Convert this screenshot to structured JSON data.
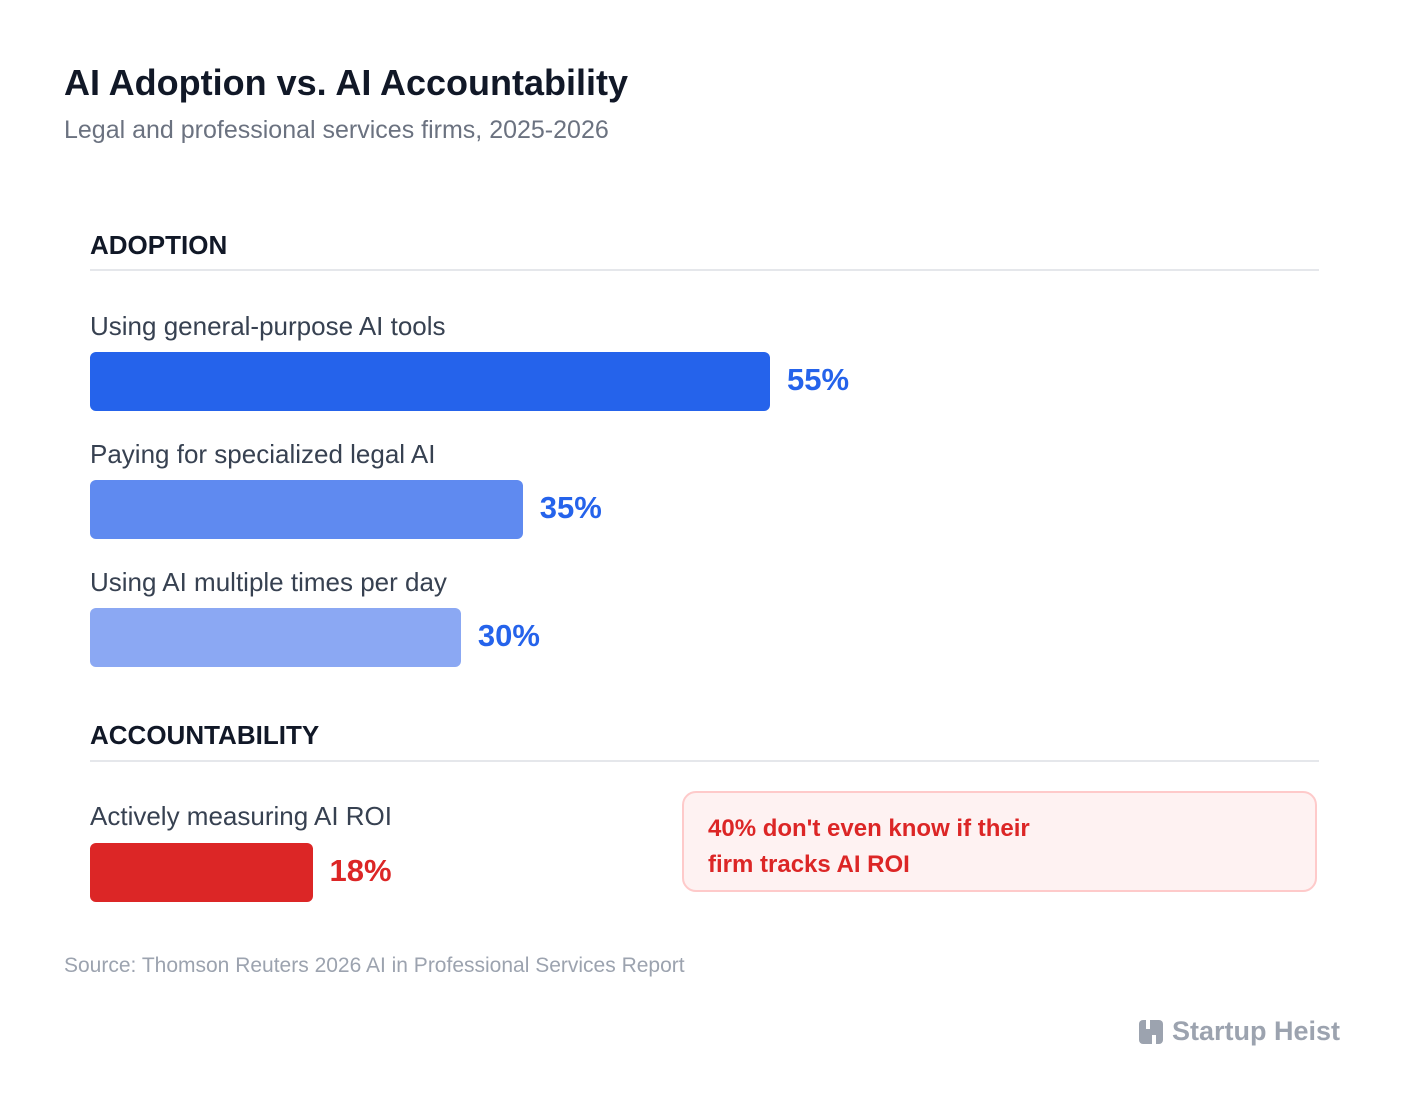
{
  "chart_data": {
    "type": "bar",
    "orientation": "horizontal",
    "title": "AI Adoption vs. AI Accountability",
    "subtitle": "Legal and professional services firms, 2025-2026",
    "unit": "%",
    "xlim": [
      0,
      100
    ],
    "groups": [
      {
        "heading": "ADOPTION",
        "bars": [
          {
            "label": "Using general-purpose AI tools",
            "value": 55,
            "value_label": "55%",
            "color": "#2563eb",
            "label_color": "#2563eb"
          },
          {
            "label": "Paying for specialized legal AI",
            "value": 35,
            "value_label": "35%",
            "color": "#5f8af0",
            "label_color": "#2563eb"
          },
          {
            "label": "Using AI multiple times per day",
            "value": 30,
            "value_label": "30%",
            "color": "#8ba8f3",
            "label_color": "#2563eb"
          }
        ]
      },
      {
        "heading": "ACCOUNTABILITY",
        "bars": [
          {
            "label": "Actively measuring AI ROI",
            "value": 18,
            "value_label": "18%",
            "color": "#dc2626",
            "label_color": "#dc2626"
          }
        ]
      }
    ],
    "annotation": "40% don't even know if their firm tracks AI ROI",
    "source": "Source: Thomson Reuters 2026 AI in Professional Services Report"
  },
  "brand": {
    "name": "Startup Heist",
    "icon": "startup-heist-logo-icon"
  }
}
